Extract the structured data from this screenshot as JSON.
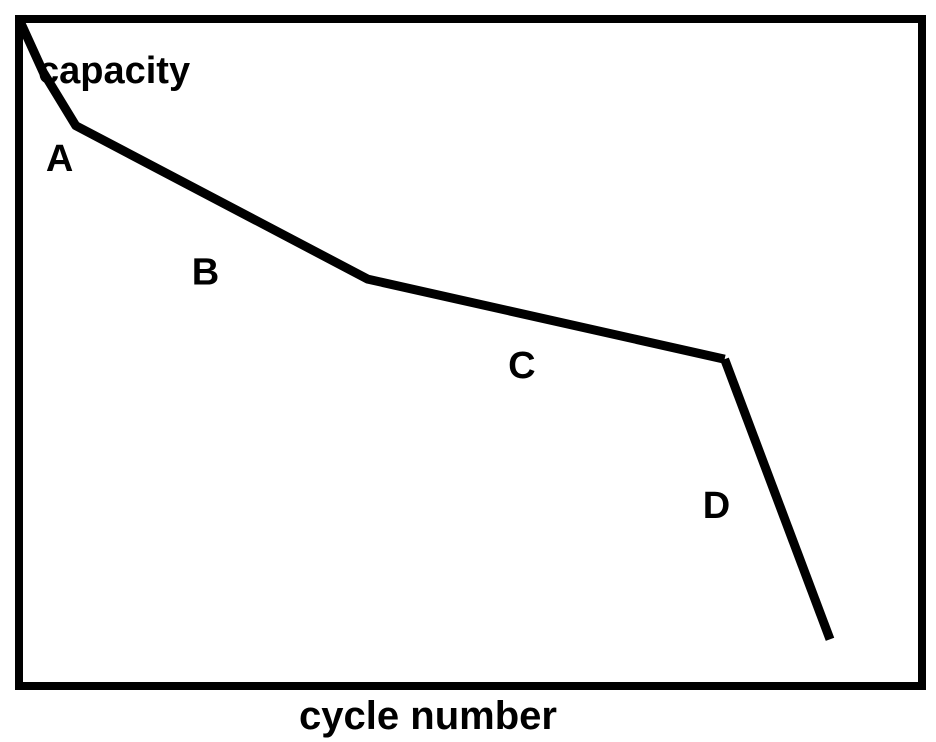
{
  "chart_data": {
    "type": "line",
    "title": "",
    "xlabel": "cycle number",
    "ylabel": "capacity",
    "grid": false,
    "legend": "none",
    "line_color": "#000000",
    "series": [
      {
        "x": [
          0,
          3,
          7,
          43,
          87
        ],
        "y": [
          100,
          92,
          84,
          61,
          49
        ]
      },
      {
        "x": [
          87,
          100
        ],
        "y": [
          49,
          7
        ]
      }
    ],
    "annotations": [
      {
        "text": "A",
        "x": 5,
        "y": 79
      },
      {
        "text": "B",
        "x": 23,
        "y": 62
      },
      {
        "text": "C",
        "x": 62,
        "y": 48
      },
      {
        "text": "D",
        "x": 86,
        "y": 27
      }
    ]
  }
}
